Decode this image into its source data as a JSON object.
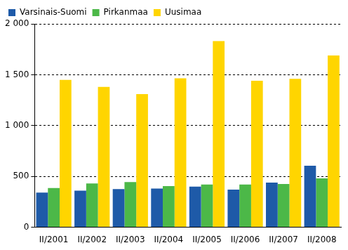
{
  "chart_data": {
    "type": "bar",
    "categories": [
      "II/2001",
      "II/2002",
      "II/2003",
      "II/2004",
      "II/2005",
      "II/2006",
      "II/2007",
      "II/2008"
    ],
    "series": [
      {
        "name": "Varsinais-Suomi",
        "color": "#1E5AA8",
        "values": [
          340,
          360,
          375,
          380,
          400,
          370,
          440,
          605
        ]
      },
      {
        "name": "Pirkanmaa",
        "color": "#4CB848",
        "values": [
          385,
          430,
          445,
          405,
          420,
          420,
          425,
          480
        ]
      },
      {
        "name": "Uusimaa",
        "color": "#FFD500",
        "values": [
          1450,
          1380,
          1310,
          1465,
          1830,
          1440,
          1460,
          1690
        ]
      }
    ],
    "ylim": [
      0,
      2000
    ],
    "yticks": [
      0,
      500,
      {
        "value": 1000,
        "label": "1 000"
      },
      {
        "value": 1500,
        "label": "1 500"
      },
      {
        "value": 2000,
        "label": "2 000"
      }
    ],
    "grid": true,
    "legend": "upper left"
  }
}
